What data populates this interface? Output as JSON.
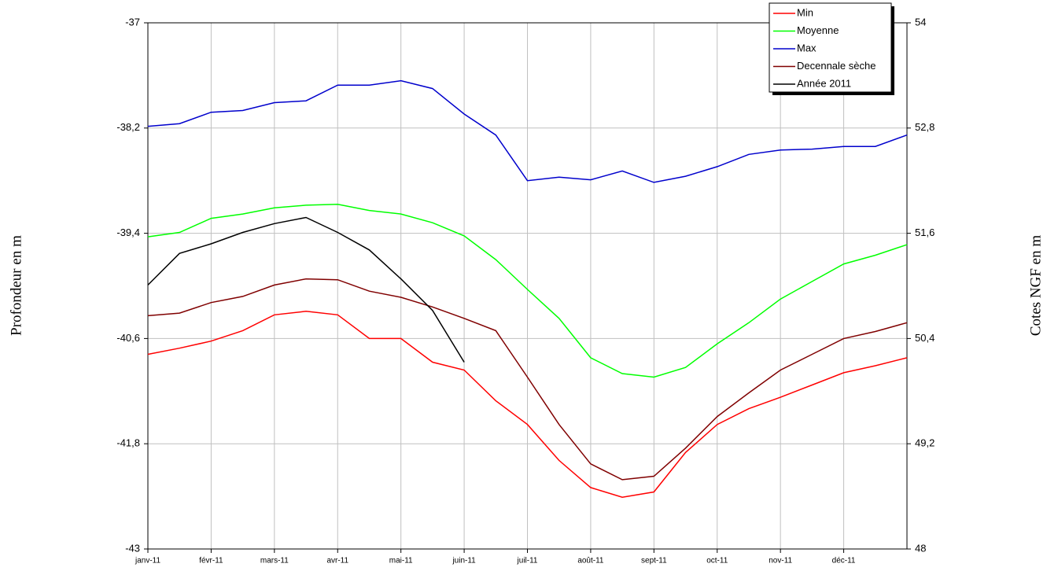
{
  "chart_data": {
    "type": "line",
    "ylabel": "Profondeur en m",
    "y2label": "Cotes NGF en m",
    "categories": [
      "janv-11",
      null,
      "févr-11",
      null,
      "mars-11",
      null,
      "avr-11",
      null,
      "mai-11",
      null,
      "juin-11",
      null,
      "juil-11",
      null,
      "août-11",
      null,
      "sept-11",
      null,
      "oct-11",
      null,
      "nov-11",
      null,
      "déc-11",
      null,
      null
    ],
    "series": [
      {
        "name": "Min",
        "color": "#ff0000",
        "values": [
          -40.78,
          -40.71,
          -40.63,
          -40.51,
          -40.33,
          -40.29,
          -40.33,
          -40.6,
          -40.6,
          -40.87,
          -40.96,
          -41.31,
          -41.58,
          -41.99,
          -42.3,
          -42.41,
          -42.35,
          -41.9,
          -41.58,
          -41.4,
          -41.27,
          -41.13,
          -40.99,
          -40.91,
          -40.82
        ]
      },
      {
        "name": "Moyenne",
        "color": "#00ff00",
        "values": [
          -39.44,
          -39.39,
          -39.23,
          -39.18,
          -39.11,
          -39.08,
          -39.07,
          -39.14,
          -39.18,
          -39.28,
          -39.43,
          -39.7,
          -40.04,
          -40.37,
          -40.82,
          -41.0,
          -41.04,
          -40.93,
          -40.66,
          -40.42,
          -40.15,
          -39.95,
          -39.75,
          -39.65,
          -39.53
        ]
      },
      {
        "name": "Max",
        "color": "#0000cc",
        "values": [
          -38.18,
          -38.15,
          -38.02,
          -38.0,
          -37.91,
          -37.89,
          -37.71,
          -37.71,
          -37.66,
          -37.75,
          -38.04,
          -38.28,
          -38.8,
          -38.76,
          -38.79,
          -38.69,
          -38.82,
          -38.75,
          -38.64,
          -38.5,
          -38.45,
          -38.44,
          -38.41,
          -38.41,
          -38.28
        ]
      },
      {
        "name": "Decennale sèche",
        "color": "#800000",
        "values": [
          -40.34,
          -40.31,
          -40.19,
          -40.12,
          -39.99,
          -39.92,
          -39.93,
          -40.06,
          -40.13,
          -40.24,
          -40.37,
          -40.51,
          -41.04,
          -41.58,
          -42.03,
          -42.21,
          -42.17,
          -41.85,
          -41.49,
          -41.22,
          -40.96,
          -40.78,
          -40.6,
          -40.52,
          -40.42
        ]
      },
      {
        "name": "Année 2011",
        "color": "#000000",
        "values": [
          -39.99,
          -39.63,
          -39.52,
          -39.39,
          -39.29,
          -39.22,
          -39.39,
          -39.59,
          -39.92,
          -40.28,
          -40.87,
          null,
          null,
          null,
          null,
          null,
          null,
          null,
          null,
          null,
          null,
          null,
          null,
          null,
          null
        ]
      }
    ],
    "ylim": [
      -43,
      -37
    ],
    "yticks": [
      -43,
      {
        "value": -41.8,
        "label": "-41,8"
      },
      {
        "value": -40.6,
        "label": "-40,6"
      },
      {
        "value": -39.4,
        "label": "-39,4"
      },
      {
        "value": -38.2,
        "label": "-38,2"
      },
      -37
    ],
    "y2lim": [
      48,
      54
    ],
    "y2ticks": [
      48,
      {
        "value": 49.2,
        "label": "49,2"
      },
      {
        "value": 50.4,
        "label": "50,4"
      },
      {
        "value": 51.6,
        "label": "51,6"
      },
      {
        "value": 52.8,
        "label": "52,8"
      },
      54
    ],
    "grid": true,
    "legend": "top-right"
  }
}
